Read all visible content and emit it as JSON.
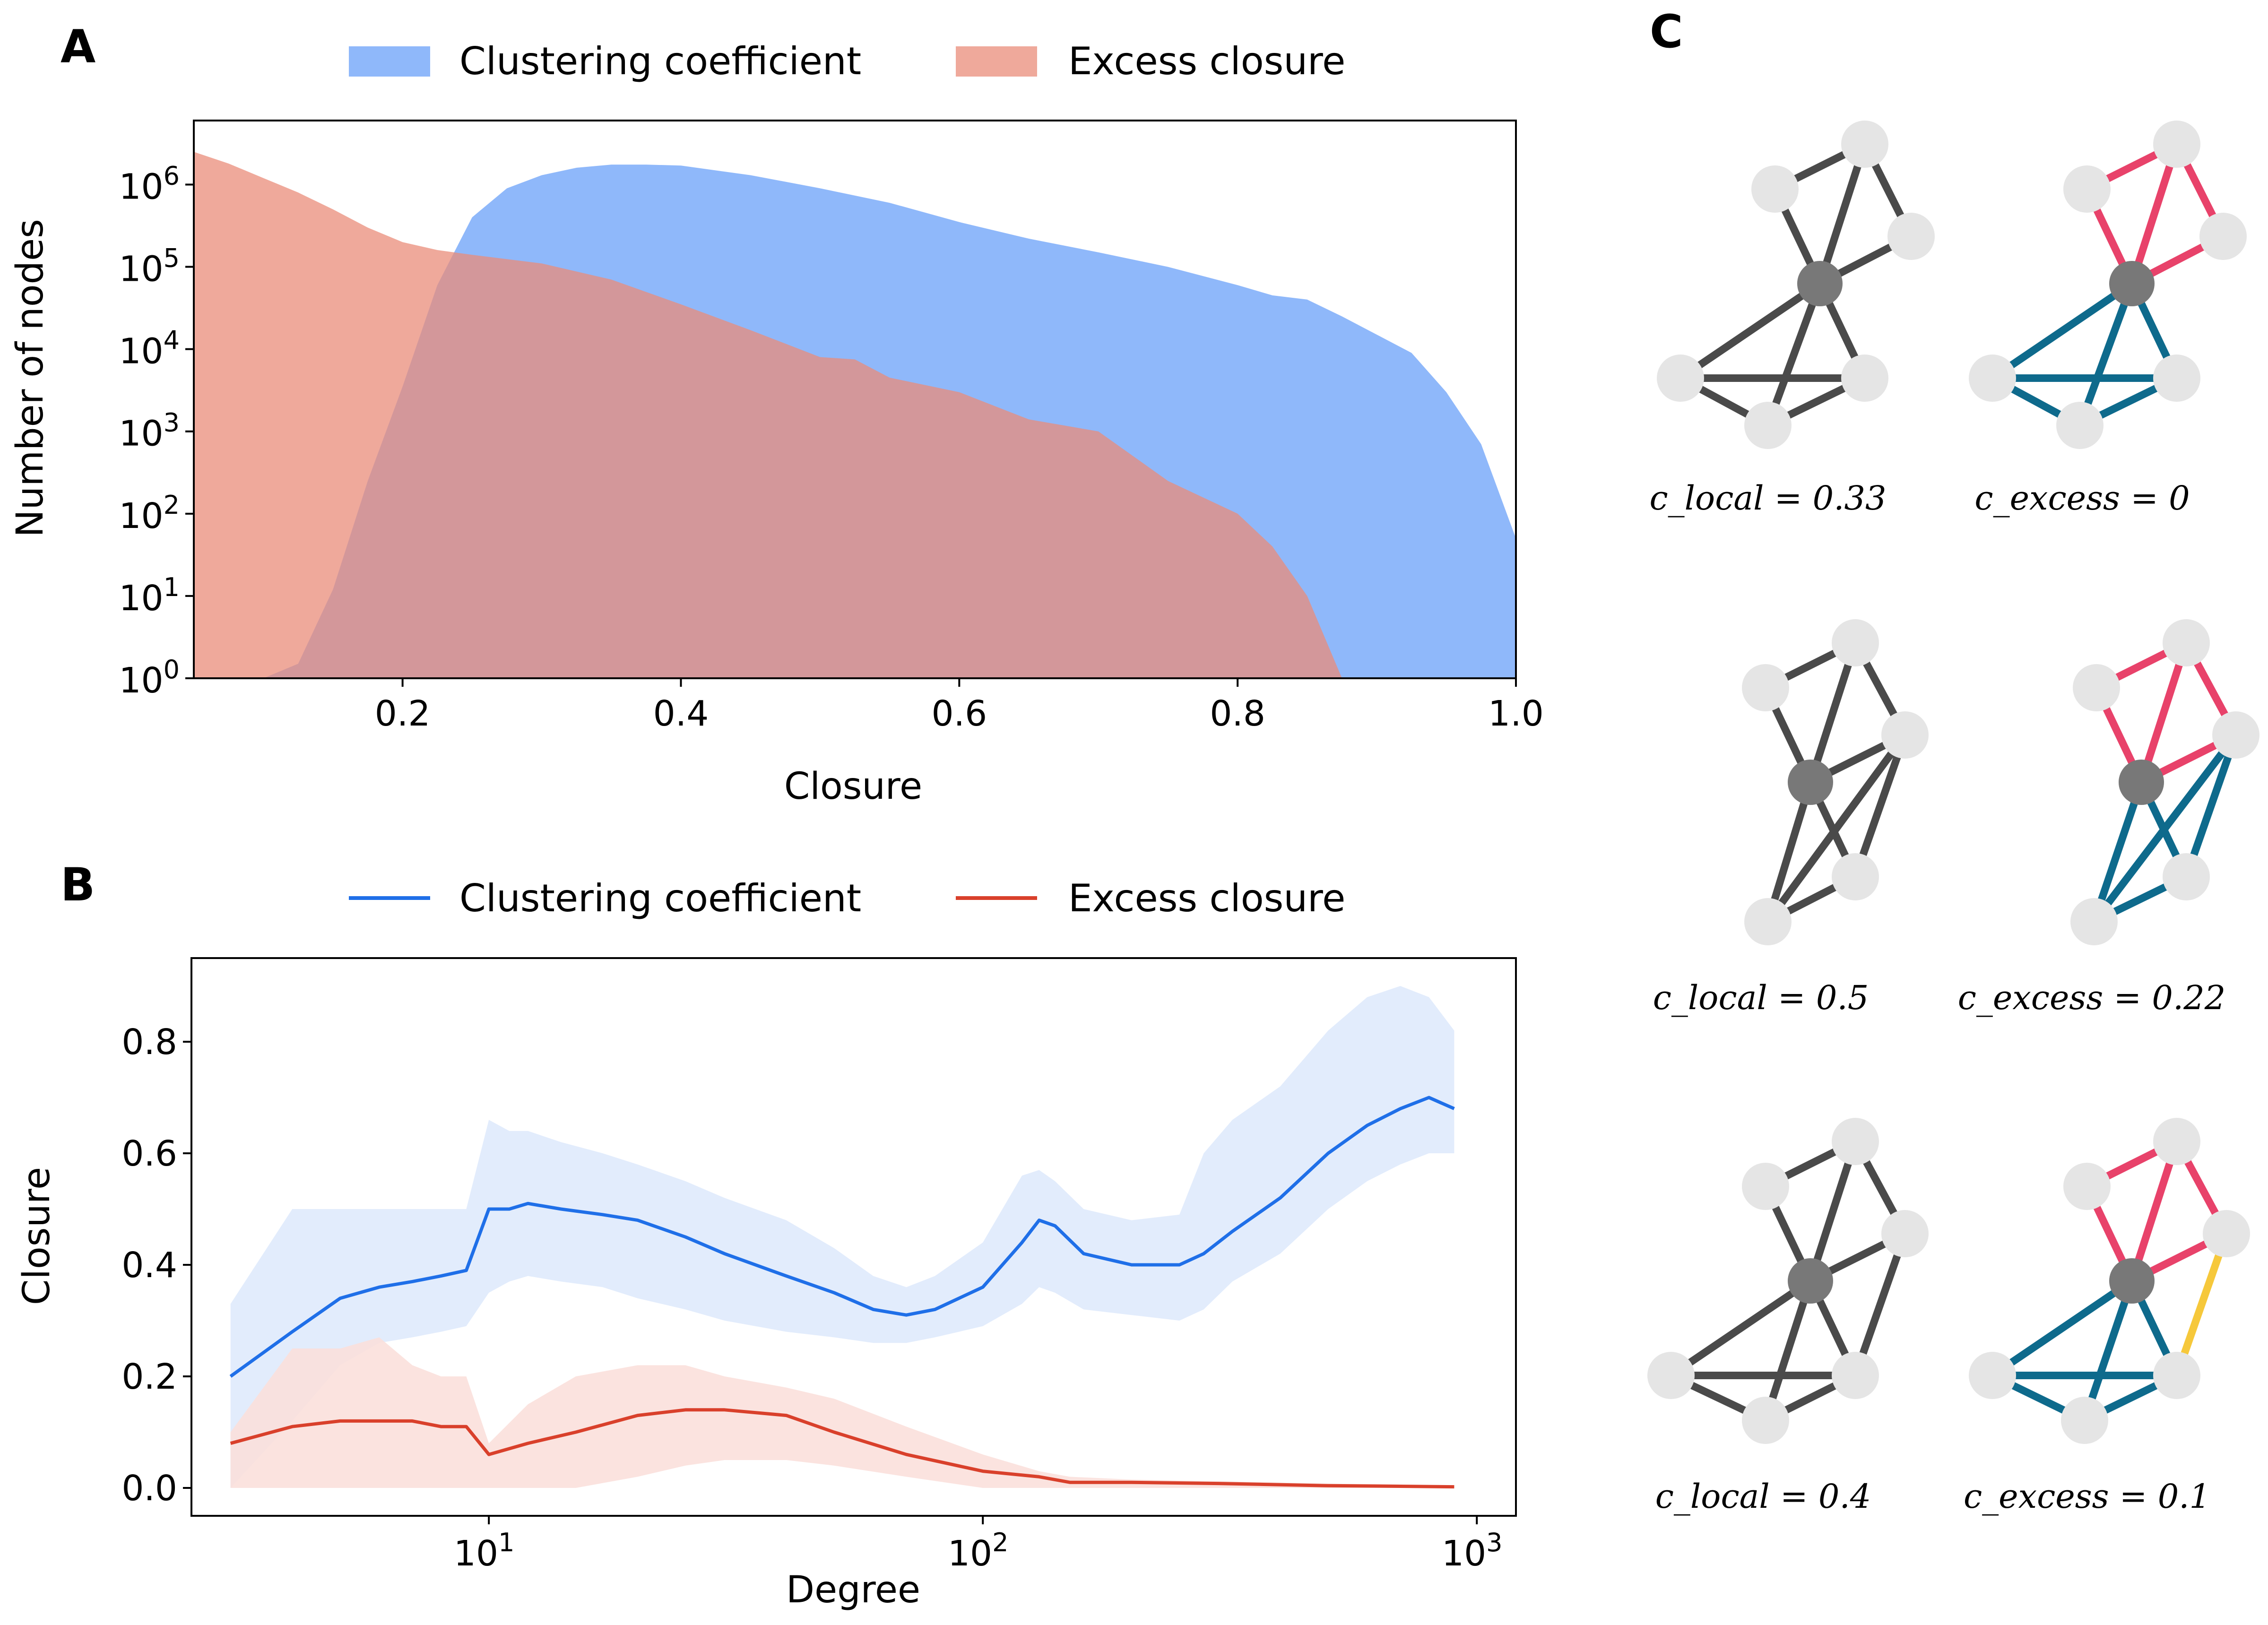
{
  "panels": {
    "a": "A",
    "b": "B",
    "c": "C"
  },
  "chart_data": [
    {
      "id": "A",
      "type": "area",
      "title": "",
      "xlabel": "Closure",
      "ylabel": "Number of nodes",
      "yscale": "log",
      "xlim": [
        0.05,
        1.0
      ],
      "ylim": [
        1,
        6000000
      ],
      "xticks": [
        "0.2",
        "0.4",
        "0.6",
        "0.8",
        "1.0"
      ],
      "xtick_values": [
        0.2,
        0.4,
        0.6,
        0.8,
        1.0
      ],
      "yticks": [
        {
          "base": "10",
          "exp": "0",
          "value": 1
        },
        {
          "base": "10",
          "exp": "1",
          "value": 10
        },
        {
          "base": "10",
          "exp": "2",
          "value": 100
        },
        {
          "base": "10",
          "exp": "3",
          "value": 1000
        },
        {
          "base": "10",
          "exp": "4",
          "value": 10000
        },
        {
          "base": "10",
          "exp": "5",
          "value": 100000
        },
        {
          "base": "10",
          "exp": "6",
          "value": 1000000
        }
      ],
      "legend_position": "top-center",
      "series": [
        {
          "name": "Clustering coefficient",
          "color": "#6aa0f8",
          "x": [
            0.05,
            0.075,
            0.1,
            0.125,
            0.15,
            0.175,
            0.2,
            0.225,
            0.25,
            0.275,
            0.3,
            0.325,
            0.35,
            0.375,
            0.4,
            0.45,
            0.5,
            0.55,
            0.6,
            0.65,
            0.7,
            0.75,
            0.8,
            0.825,
            0.85,
            0.875,
            0.9,
            0.925,
            0.95,
            0.975,
            1.0
          ],
          "y": [
            1,
            1,
            1,
            1.5,
            12,
            250,
            3500,
            60000,
            400000,
            900000,
            1300000,
            1600000,
            1750000,
            1750000,
            1700000,
            1300000,
            900000,
            600000,
            350000,
            220000,
            150000,
            100000,
            60000,
            45000,
            40000,
            25000,
            15000,
            9000,
            3000,
            700,
            50
          ]
        },
        {
          "name": "Excess closure",
          "color": "#ea8c7a",
          "x": [
            0.05,
            0.075,
            0.1,
            0.125,
            0.15,
            0.175,
            0.2,
            0.225,
            0.25,
            0.3,
            0.35,
            0.4,
            0.45,
            0.5,
            0.525,
            0.55,
            0.6,
            0.65,
            0.7,
            0.75,
            0.8,
            0.825,
            0.85,
            0.875,
            0.9
          ],
          "y": [
            2500000,
            1800000,
            1200000,
            800000,
            500000,
            300000,
            200000,
            160000,
            140000,
            110000,
            70000,
            35000,
            17000,
            8000,
            7500,
            4500,
            3000,
            1400,
            1000,
            250,
            100,
            40,
            10,
            1,
            1
          ]
        }
      ]
    },
    {
      "id": "B",
      "type": "line",
      "title": "",
      "xlabel": "Degree",
      "ylabel": "Closure",
      "xscale": "log",
      "xlim": [
        2.5,
        1200
      ],
      "ylim": [
        -0.05,
        0.95
      ],
      "xticks": [
        {
          "base": "10",
          "exp": "1",
          "value": 10
        },
        {
          "base": "10",
          "exp": "2",
          "value": 100
        },
        {
          "base": "10",
          "exp": "3",
          "value": 1000
        }
      ],
      "yticks": [
        "0.0",
        "0.2",
        "0.4",
        "0.6",
        "0.8"
      ],
      "ytick_values": [
        0.0,
        0.2,
        0.4,
        0.6,
        0.8
      ],
      "legend_position": "top-center",
      "series": [
        {
          "name": "Clustering coefficient",
          "color": "#1f6fe8",
          "band_color": "#dfeafc",
          "x": [
            3,
            4,
            5,
            6,
            7,
            8,
            9,
            10,
            11,
            12,
            14,
            17,
            20,
            25,
            30,
            40,
            50,
            60,
            70,
            80,
            100,
            120,
            130,
            140,
            160,
            200,
            250,
            280,
            320,
            400,
            500,
            600,
            700,
            800,
            900
          ],
          "y": [
            0.2,
            0.28,
            0.34,
            0.36,
            0.37,
            0.38,
            0.39,
            0.5,
            0.5,
            0.51,
            0.5,
            0.49,
            0.48,
            0.45,
            0.42,
            0.38,
            0.35,
            0.32,
            0.31,
            0.32,
            0.36,
            0.44,
            0.48,
            0.47,
            0.42,
            0.4,
            0.4,
            0.42,
            0.46,
            0.52,
            0.6,
            0.65,
            0.68,
            0.7,
            0.68
          ],
          "lower": [
            0.0,
            0.12,
            0.22,
            0.26,
            0.27,
            0.28,
            0.29,
            0.35,
            0.37,
            0.38,
            0.37,
            0.36,
            0.34,
            0.32,
            0.3,
            0.28,
            0.27,
            0.26,
            0.26,
            0.27,
            0.29,
            0.33,
            0.36,
            0.35,
            0.32,
            0.31,
            0.3,
            0.32,
            0.37,
            0.42,
            0.5,
            0.55,
            0.58,
            0.6,
            0.6
          ],
          "upper": [
            0.33,
            0.5,
            0.5,
            0.5,
            0.5,
            0.5,
            0.5,
            0.66,
            0.64,
            0.64,
            0.62,
            0.6,
            0.58,
            0.55,
            0.52,
            0.48,
            0.43,
            0.38,
            0.36,
            0.38,
            0.44,
            0.56,
            0.57,
            0.55,
            0.5,
            0.48,
            0.49,
            0.6,
            0.66,
            0.72,
            0.82,
            0.88,
            0.9,
            0.88,
            0.82
          ]
        },
        {
          "name": "Excess closure",
          "color": "#d9402b",
          "band_color": "#fbe0db",
          "x": [
            3,
            4,
            5,
            6,
            7,
            8,
            9,
            10,
            12,
            15,
            20,
            25,
            30,
            40,
            50,
            70,
            100,
            130,
            150,
            200,
            300,
            500,
            700,
            900
          ],
          "y": [
            0.08,
            0.11,
            0.12,
            0.12,
            0.12,
            0.11,
            0.11,
            0.06,
            0.08,
            0.1,
            0.13,
            0.14,
            0.14,
            0.13,
            0.1,
            0.06,
            0.03,
            0.02,
            0.01,
            0.01,
            0.008,
            0.004,
            0.003,
            0.002
          ],
          "lower": [
            0.0,
            0.0,
            0.0,
            0.0,
            0.0,
            0.0,
            0.0,
            0.0,
            0.0,
            0.0,
            0.02,
            0.04,
            0.05,
            0.05,
            0.04,
            0.02,
            0.0,
            0.0,
            0.0,
            0.0,
            0.0,
            0.0,
            0.0,
            0.0
          ],
          "upper": [
            0.1,
            0.25,
            0.25,
            0.27,
            0.22,
            0.2,
            0.2,
            0.08,
            0.15,
            0.2,
            0.22,
            0.22,
            0.2,
            0.18,
            0.16,
            0.11,
            0.06,
            0.03,
            0.02,
            0.015,
            0.012,
            0.008,
            0.006,
            0.005
          ]
        }
      ]
    }
  ],
  "panel_c": {
    "colors": {
      "gray_edge": "#4a4a4a",
      "pink_edge": "#e8426a",
      "teal_edge": "#0e6a8c",
      "yellow_edge": "#f6c83b",
      "center_node": "#787878",
      "leaf_node": "#e5e5e5"
    },
    "examples": [
      {
        "local_label": "c_local = 0.33",
        "excess_label": "c_excess = 0"
      },
      {
        "local_label": "c_local = 0.5",
        "excess_label": "c_excess = 0.22"
      },
      {
        "local_label": "c_local = 0.4",
        "excess_label": "c_excess = 0.1"
      }
    ]
  }
}
